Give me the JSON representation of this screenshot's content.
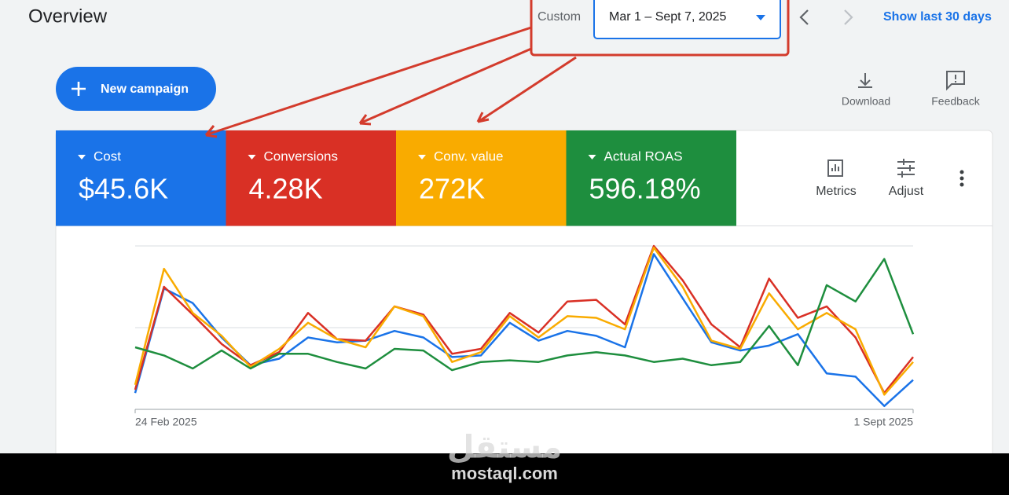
{
  "header": {
    "title": "Overview",
    "date_label": "Custom",
    "date_range": "Mar 1 – Sept 7, 2025",
    "show_last": "Show last 30 days"
  },
  "toolbar": {
    "new_campaign": "New campaign",
    "download": "Download",
    "feedback": "Feedback"
  },
  "metrics": [
    "$45.6K",
    "4.28K",
    "272K",
    "596.18%"
  ],
  "actions": {
    "metrics": "Metrics",
    "adjust": "Adjust"
  },
  "chart_data": {
    "type": "line",
    "categories": [
      "24 Feb 2025",
      null,
      null,
      null,
      null,
      null,
      null,
      null,
      null,
      null,
      null,
      null,
      null,
      null,
      null,
      null,
      null,
      null,
      null,
      null,
      null,
      null,
      null,
      null,
      null,
      null,
      null,
      "1 Sept 2025"
    ],
    "series": [
      {
        "name": "Cost",
        "color": "#1a73e8",
        "values": [
          10,
          74,
          65,
          44,
          27,
          31,
          44,
          41,
          42,
          48,
          44,
          32,
          33,
          53,
          42,
          48,
          45,
          38,
          95,
          68,
          41,
          36,
          39,
          46,
          22,
          20,
          2,
          18
        ]
      },
      {
        "name": "Conversions",
        "color": "#d93025",
        "values": [
          12,
          75,
          58,
          40,
          27,
          35,
          59,
          43,
          42,
          63,
          58,
          34,
          37,
          59,
          47,
          66,
          67,
          52,
          100,
          79,
          52,
          38,
          80,
          56,
          63,
          44,
          10,
          32
        ]
      },
      {
        "name": "Conv. value",
        "color": "#f9ab00",
        "values": [
          15,
          86,
          59,
          45,
          26,
          37,
          53,
          43,
          38,
          63,
          57,
          29,
          35,
          57,
          44,
          57,
          56,
          49,
          99,
          75,
          42,
          37,
          71,
          49,
          59,
          49,
          9,
          29
        ]
      },
      {
        "name": "Actual ROAS",
        "color": "#1e8e3e",
        "values": [
          38,
          33,
          25,
          36,
          25,
          34,
          34,
          29,
          25,
          37,
          36,
          24,
          29,
          30,
          29,
          33,
          35,
          33,
          29,
          31,
          27,
          29,
          51,
          27,
          76,
          66,
          92,
          46
        ]
      }
    ],
    "ylim": [
      0,
      100
    ],
    "yticks": [
      0,
      50,
      100
    ],
    "grid": true
  },
  "watermark": {
    "arabic": "مستقل",
    "latin": "mostaql.com"
  }
}
